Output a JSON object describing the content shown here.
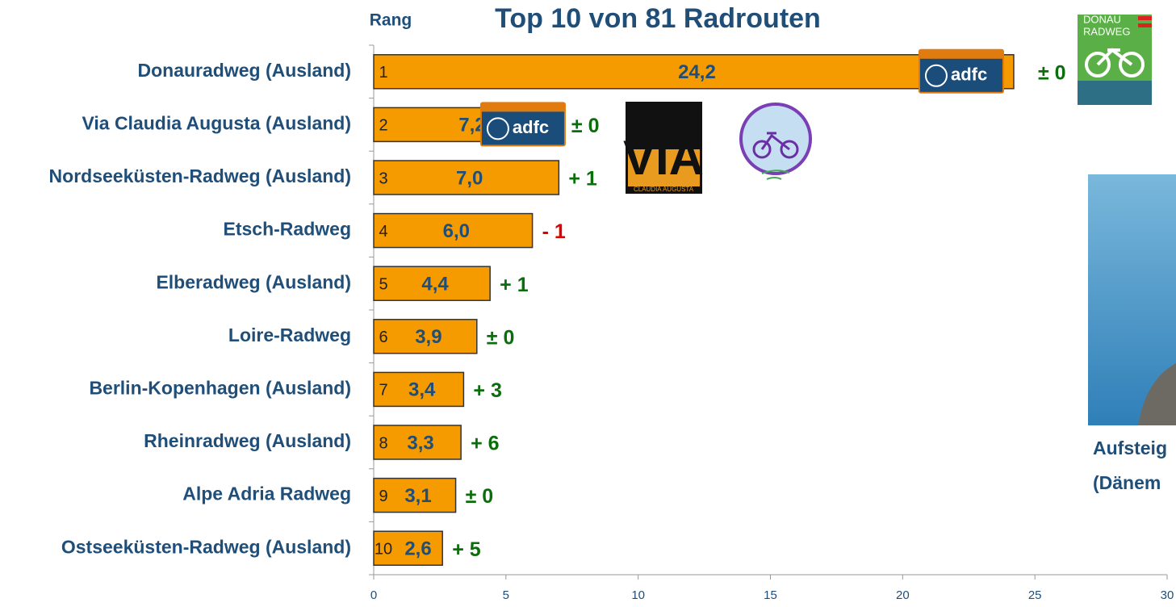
{
  "chart_data": {
    "type": "bar",
    "title": "Top 10 von 81 Radrouten",
    "rank_header": "Rang",
    "categories": [
      "Donauradweg (Ausland)",
      "Via Claudia Augusta (Ausland)",
      "Nordseeküsten-Radweg (Ausland)",
      "Etsch-Radweg",
      "Elberadweg (Ausland)",
      "Loire-Radweg",
      "Berlin-Kopenhagen (Ausland)",
      "Rheinradweg (Ausland)",
      "Alpe Adria Radweg",
      "Ostseeküsten-Radweg (Ausland)"
    ],
    "values": [
      24.2,
      7.2,
      7.0,
      6.0,
      4.4,
      3.9,
      3.4,
      3.3,
      3.1,
      2.6
    ],
    "value_labels": [
      "24,2",
      "7,2",
      "7,0",
      "6,0",
      "4,4",
      "3,9",
      "3,4",
      "3,3",
      "3,1",
      "2,6"
    ],
    "ranks": [
      1,
      2,
      3,
      4,
      5,
      6,
      7,
      8,
      9,
      10
    ],
    "changes": [
      "± 0",
      "± 0",
      "+ 1",
      "- 1",
      "+ 1",
      "± 0",
      "+ 3",
      "+ 6",
      "± 0",
      "+ 5"
    ],
    "change_colors": [
      "#0a6e0a",
      "#0a6e0a",
      "#0a6e0a",
      "#e00000",
      "#0a6e0a",
      "#0a6e0a",
      "#0a6e0a",
      "#0a6e0a",
      "#0a6e0a",
      "#0a6e0a"
    ],
    "color": "#f59b00",
    "xlim": [
      0,
      30
    ],
    "xticks": [
      0,
      5,
      10,
      15,
      20,
      25,
      30
    ],
    "logos": {
      "adfc": "adfc",
      "donau_top": "DONAU",
      "donau_bottom": "RADWEG",
      "via": "VIA",
      "via_sub": "CLAUDIA AUGUSTA"
    },
    "caption": [
      "Aufsteig",
      "(Dänem"
    ]
  }
}
